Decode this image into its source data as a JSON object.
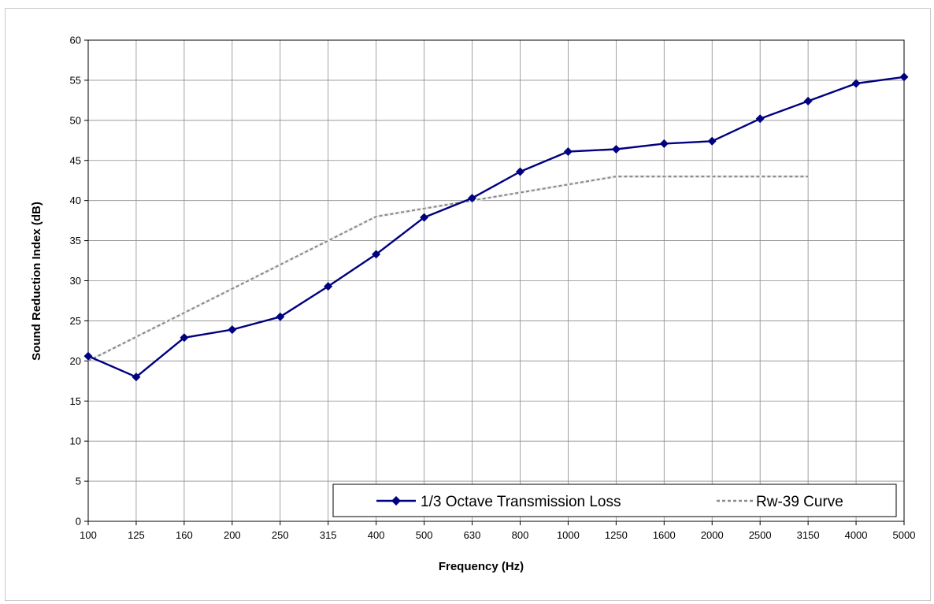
{
  "chart_data": {
    "type": "line",
    "title": "",
    "xlabel": "Frequency (Hz)",
    "ylabel": "Sound Reduction Index (dB)",
    "categories": [
      "100",
      "125",
      "160",
      "200",
      "250",
      "315",
      "400",
      "500",
      "630",
      "800",
      "1000",
      "1250",
      "1600",
      "2000",
      "2500",
      "3150",
      "4000",
      "5000"
    ],
    "ylim": [
      0,
      60
    ],
    "yticks": [
      0,
      5,
      10,
      15,
      20,
      25,
      30,
      35,
      40,
      45,
      50,
      55,
      60
    ],
    "grid": true,
    "legend_position": "bottom-right",
    "series": [
      {
        "name": "1/3 Octave Transmission Loss",
        "color": "#000080",
        "style": "solid-diamond",
        "values": [
          20.6,
          18.0,
          22.9,
          23.9,
          25.5,
          29.3,
          33.3,
          37.9,
          40.3,
          43.6,
          46.1,
          46.4,
          47.1,
          47.4,
          50.2,
          52.4,
          54.6,
          55.4
        ]
      },
      {
        "name": "Rw-39 Curve",
        "color": "#8c8c8c",
        "style": "dashed",
        "values": [
          20,
          23,
          26,
          29,
          32,
          35,
          38,
          39,
          40,
          41,
          42,
          43,
          43,
          43,
          43,
          43,
          null,
          null
        ]
      }
    ]
  }
}
